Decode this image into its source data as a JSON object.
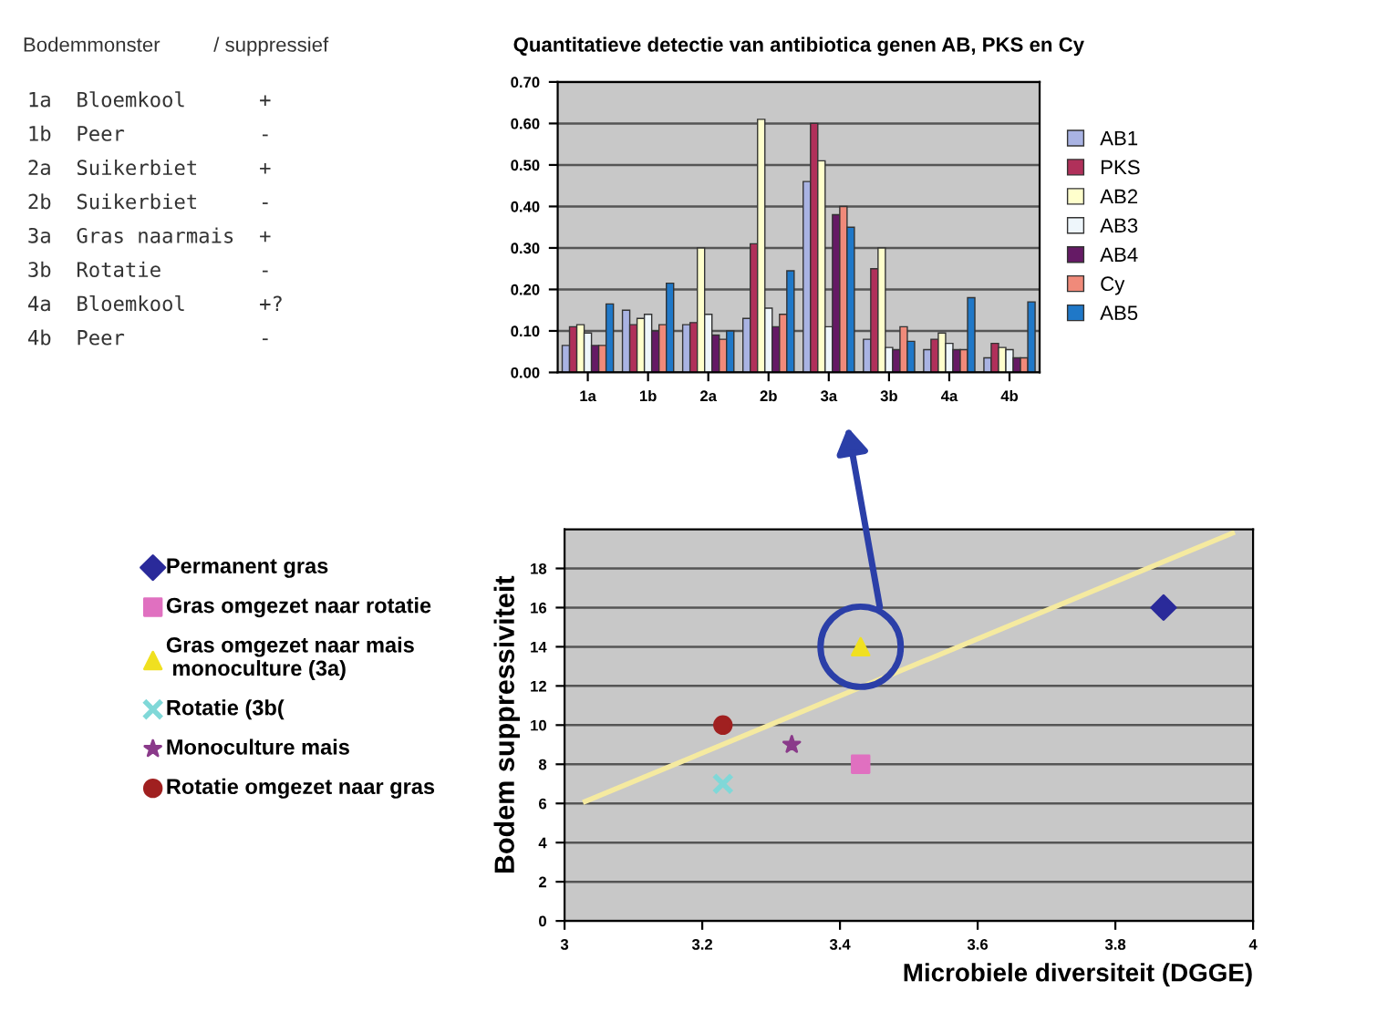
{
  "chart_data": [
    {
      "type": "other",
      "annotations": [
        "Bodemmonster",
        "/ suppressief",
        "1a",
        "Bloemkool",
        "+",
        "1b",
        "Peer",
        "-",
        "2a",
        "Suikerbiet",
        "+",
        "2b",
        "Suikerbiet",
        "-",
        "3a",
        "Gras naarmais",
        "+",
        "3b",
        "Rotatie",
        "-",
        "4a",
        "Bloemkool",
        "+?",
        "4b",
        "Peer",
        "-"
      ]
    },
    {
      "type": "bar",
      "title": "Quantitatieve detectie van antibiotica genen AB, PKS en Cy",
      "categories": [
        "1a",
        "1b",
        "2a",
        "2b",
        "3a",
        "3b",
        "4a",
        "4b"
      ],
      "series": [
        {
          "name": "AB1",
          "color": "#a9b3e3",
          "values": [
            0.065,
            0.15,
            0.115,
            0.13,
            0.46,
            0.08,
            0.055,
            0.035
          ]
        },
        {
          "name": "PKS",
          "color": "#b0305a",
          "values": [
            0.11,
            0.115,
            0.12,
            0.31,
            0.6,
            0.25,
            0.08,
            0.07
          ]
        },
        {
          "name": "AB2",
          "color": "#ffffcc",
          "values": [
            0.115,
            0.13,
            0.3,
            0.61,
            0.51,
            0.3,
            0.095,
            0.06
          ]
        },
        {
          "name": "AB3",
          "color": "#eef6fb",
          "values": [
            0.095,
            0.14,
            0.14,
            0.155,
            0.11,
            0.06,
            0.07,
            0.055
          ]
        },
        {
          "name": "AB4",
          "color": "#651a65",
          "values": [
            0.065,
            0.1,
            0.09,
            0.11,
            0.38,
            0.055,
            0.055,
            0.035
          ]
        },
        {
          "name": "Cy",
          "color": "#f08a7a",
          "values": [
            0.065,
            0.115,
            0.08,
            0.14,
            0.4,
            0.11,
            0.055,
            0.035
          ]
        },
        {
          "name": "AB5",
          "color": "#1f78c8",
          "values": [
            0.165,
            0.215,
            0.1,
            0.245,
            0.35,
            0.075,
            0.18,
            0.17
          ]
        }
      ],
      "ylim": [
        0,
        0.7
      ],
      "yticks": [
        {
          "value": 0,
          "label": "0.00"
        },
        {
          "value": 0.1,
          "label": "0.10"
        },
        {
          "value": 0.2,
          "label": "0.20"
        },
        {
          "value": 0.3,
          "label": "0.30"
        },
        {
          "value": 0.4,
          "label": "0.40"
        },
        {
          "value": 0.5,
          "label": "0.50"
        },
        {
          "value": 0.6,
          "label": "0.60"
        },
        {
          "value": 0.7,
          "label": "0.70"
        }
      ],
      "grid": "y",
      "legend": "right"
    },
    {
      "type": "scatter",
      "xlabel": "Microbiele diversiteit (DGGE)",
      "ylabel": "Bodem suppressiviteit",
      "series": [
        {
          "name": "Permanent gras",
          "color": "#2a2a9a",
          "marker": "diamond",
          "x": [
            3.87
          ],
          "values": [
            16
          ]
        },
        {
          "name": "Gras omgezet naar rotatie",
          "color": "#e070c0",
          "marker": "square",
          "x": [
            3.43
          ],
          "values": [
            8
          ]
        },
        {
          "name": "Gras omgezet naar mais\n monoculture (3a)",
          "color": "#f0e020",
          "marker": "triangle",
          "x": [
            3.43
          ],
          "values": [
            14
          ]
        },
        {
          "name": "Rotatie (3b(",
          "color": "#80d8d8",
          "marker": "cross",
          "x": [
            3.23
          ],
          "values": [
            7
          ]
        },
        {
          "name": "Monoculture mais",
          "color": "#8a3a8a",
          "marker": "star",
          "x": [
            3.33
          ],
          "values": [
            9
          ]
        },
        {
          "name": "Rotatie omgezet naar gras",
          "color": "#a02020",
          "marker": "circle",
          "x": [
            3.23
          ],
          "values": [
            10
          ]
        },
        {
          "type": "line",
          "color": "#f5eaa0",
          "marker": "none",
          "x": [
            3.03,
            3.97
          ],
          "values": [
            6.1,
            19.8
          ]
        }
      ],
      "xlim": [
        3,
        4
      ],
      "xticks": [
        3,
        3.2,
        3.4,
        3.6,
        3.8,
        4
      ],
      "ylim": [
        0,
        20
      ],
      "yticks": [
        0,
        2,
        4,
        6,
        8,
        10,
        12,
        14,
        16,
        18
      ],
      "grid": "y",
      "legend": "left"
    }
  ]
}
